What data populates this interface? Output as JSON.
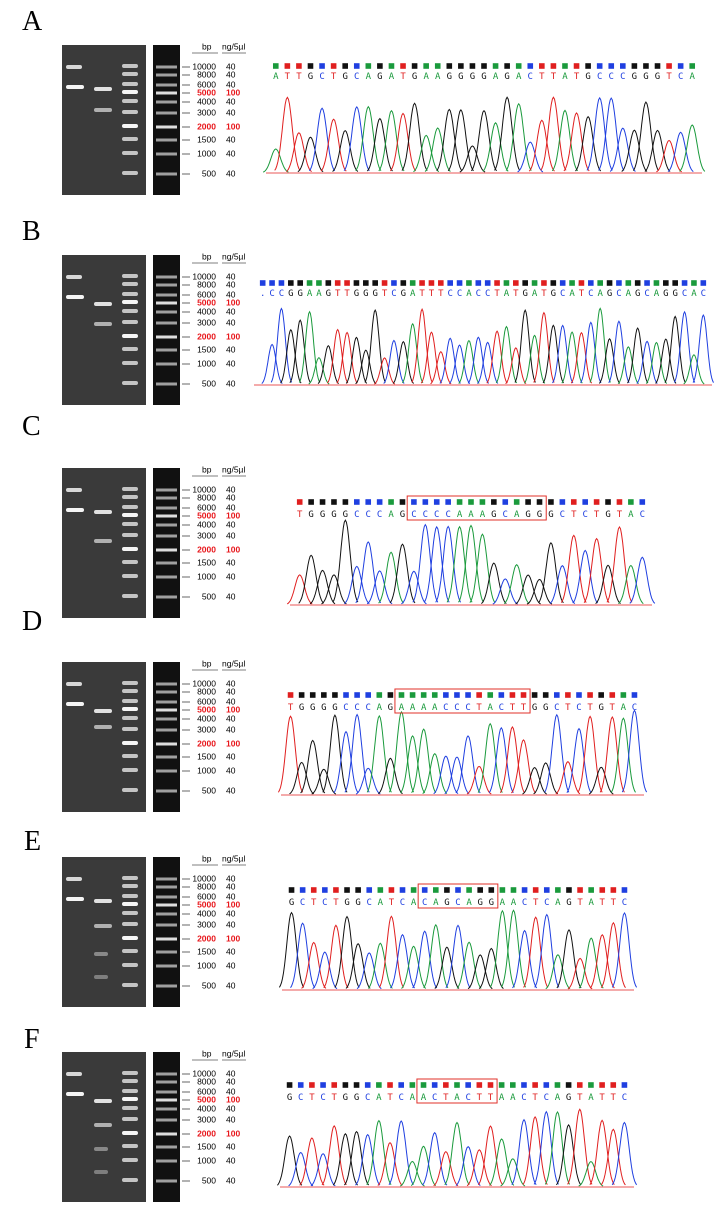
{
  "ladder": {
    "unit": "bp",
    "amount_unit": "ng/5µl",
    "bands": [
      {
        "size": "10000",
        "amount": "40"
      },
      {
        "size": "8000",
        "amount": "40"
      },
      {
        "size": "6000",
        "amount": "40"
      },
      {
        "size": "5000",
        "amount": "100",
        "color": "#e8161b"
      },
      {
        "size": "4000",
        "amount": "40"
      },
      {
        "size": "3000",
        "amount": "40"
      },
      {
        "size": "2000",
        "amount": "100",
        "color": "#e8161b"
      },
      {
        "size": "1500",
        "amount": "40"
      },
      {
        "size": "1000",
        "amount": "40"
      },
      {
        "size": "500",
        "amount": "40"
      }
    ]
  },
  "base_colors": {
    "A": "#1a9a3c",
    "C": "#1f3fe0",
    "G": "#111111",
    "T": "#e01f1f"
  },
  "box_color": "#e0302a",
  "panels": [
    {
      "label": "A",
      "sequence": [
        "ATTGCTGCAGATGAAGGGGAGACTTATGCCCGGGTCA"
      ]
    },
    {
      "label": "B",
      "sequence": [
        ".CCGGAAGTTGGGTCGATTTCCACCTATGATGCATCAGCAGCAGGCAC"
      ]
    },
    {
      "label": "C",
      "sequence": [
        "TGGGGCCCAG",
        "CCCCAAAGCAGG",
        "GCTCTGTAC"
      ]
    },
    {
      "label": "D",
      "sequence": [
        "TGGGGCCCAG",
        "AAAACCCTACTT",
        "GGCTCTGTAC"
      ]
    },
    {
      "label": "E",
      "sequence": [
        "GCTCTGGCATCA",
        "CAGCAGG",
        "AACTCAGTATTC"
      ]
    },
    {
      "label": "F",
      "sequence": [
        "GCTCTGGCATCA",
        "ACTACTT",
        "AACTCAGTATTC"
      ]
    }
  ]
}
